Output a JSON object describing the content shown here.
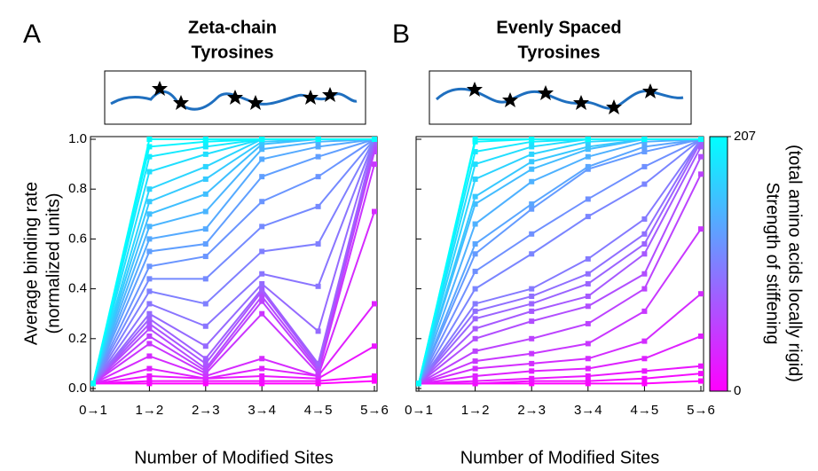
{
  "chart_data": [
    {
      "type": "line",
      "panel_label": "A",
      "title": [
        "Zeta-chain",
        "Tyrosines"
      ],
      "xlabel": "Number of Modified Sites",
      "ylabel": [
        "Average binding rate",
        "(normalized units)"
      ],
      "categories": [
        "0→1",
        "1→2",
        "2→3",
        "3→4",
        "4→5",
        "5→6"
      ],
      "ylim": [
        0,
        1
      ],
      "yticks": [
        {
          "value": 0,
          "label": "0.0"
        },
        0.2,
        0.4,
        0.6,
        0.8,
        {
          "value": 1,
          "label": "1.0"
        }
      ],
      "colormap": [
        "#ff00ff",
        "#00ffff"
      ],
      "series": [
        {
          "values": [
            0.02,
            0.02,
            0.02,
            0.02,
            0.02,
            0.03
          ]
        },
        {
          "values": [
            0.02,
            0.03,
            0.03,
            0.03,
            0.03,
            0.05
          ]
        },
        {
          "values": [
            0.02,
            0.05,
            0.04,
            0.05,
            0.04,
            0.17
          ]
        },
        {
          "values": [
            0.02,
            0.08,
            0.04,
            0.08,
            0.05,
            0.34
          ]
        },
        {
          "values": [
            0.02,
            0.13,
            0.05,
            0.12,
            0.05,
            0.71
          ]
        },
        {
          "values": [
            0.02,
            0.18,
            0.06,
            0.3,
            0.06,
            0.9
          ]
        },
        {
          "values": [
            0.02,
            0.21,
            0.07,
            0.35,
            0.07,
            0.95
          ]
        },
        {
          "values": [
            0.02,
            0.24,
            0.08,
            0.37,
            0.08,
            0.97
          ]
        },
        {
          "values": [
            0.02,
            0.26,
            0.1,
            0.39,
            0.09,
            0.98
          ]
        },
        {
          "values": [
            0.02,
            0.28,
            0.12,
            0.4,
            0.1,
            0.99
          ]
        },
        {
          "values": [
            0.02,
            0.3,
            0.17,
            0.42,
            0.23,
            1.0
          ]
        },
        {
          "values": [
            0.02,
            0.34,
            0.25,
            0.46,
            0.41,
            1.0
          ]
        },
        {
          "values": [
            0.02,
            0.39,
            0.34,
            0.55,
            0.58,
            1.0
          ]
        },
        {
          "values": [
            0.02,
            0.44,
            0.44,
            0.65,
            0.73,
            1.0
          ]
        },
        {
          "values": [
            0.02,
            0.49,
            0.53,
            0.75,
            0.85,
            1.0
          ]
        },
        {
          "values": [
            0.02,
            0.55,
            0.58,
            0.85,
            0.93,
            1.0
          ]
        },
        {
          "values": [
            0.02,
            0.6,
            0.64,
            0.92,
            0.97,
            1.0
          ]
        },
        {
          "values": [
            0.02,
            0.65,
            0.71,
            0.96,
            0.99,
            1.0
          ]
        },
        {
          "values": [
            0.02,
            0.7,
            0.78,
            0.98,
            1.0,
            1.0
          ]
        },
        {
          "values": [
            0.02,
            0.75,
            0.84,
            0.99,
            1.0,
            1.0
          ]
        },
        {
          "values": [
            0.02,
            0.8,
            0.89,
            1.0,
            1.0,
            1.0
          ]
        },
        {
          "values": [
            0.02,
            0.87,
            0.94,
            1.0,
            1.0,
            1.0
          ]
        },
        {
          "values": [
            0.02,
            0.93,
            0.97,
            1.0,
            1.0,
            1.0
          ]
        },
        {
          "values": [
            0.02,
            0.97,
            0.99,
            1.0,
            1.0,
            1.0
          ]
        },
        {
          "values": [
            0.02,
            1.0,
            1.0,
            1.0,
            1.0,
            1.0
          ]
        }
      ]
    },
    {
      "type": "line",
      "panel_label": "B",
      "title": [
        "Evenly Spaced",
        "Tyrosines"
      ],
      "xlabel": "Number of Modified Sites",
      "categories": [
        "0→1",
        "1→2",
        "2→3",
        "3→4",
        "4→5",
        "5→6"
      ],
      "ylim": [
        0,
        1
      ],
      "yticks": [
        0,
        0.2,
        0.4,
        0.6,
        0.8,
        1
      ],
      "colormap": [
        "#ff00ff",
        "#00ffff"
      ],
      "colorbar": {
        "label": [
          "Strength of stiffening",
          "(total amino acids locally rigid)"
        ],
        "lim": [
          0,
          207
        ],
        "ticks": [
          0,
          207
        ]
      },
      "series": [
        {
          "values": [
            0.02,
            0.02,
            0.02,
            0.02,
            0.02,
            0.03
          ]
        },
        {
          "values": [
            0.02,
            0.02,
            0.03,
            0.03,
            0.04,
            0.06
          ]
        },
        {
          "values": [
            0.02,
            0.03,
            0.04,
            0.05,
            0.07,
            0.09
          ]
        },
        {
          "values": [
            0.02,
            0.05,
            0.07,
            0.08,
            0.12,
            0.21
          ]
        },
        {
          "values": [
            0.02,
            0.08,
            0.1,
            0.12,
            0.19,
            0.38
          ]
        },
        {
          "values": [
            0.02,
            0.11,
            0.14,
            0.18,
            0.31,
            0.64
          ]
        },
        {
          "values": [
            0.02,
            0.15,
            0.2,
            0.26,
            0.4,
            0.86
          ]
        },
        {
          "values": [
            0.02,
            0.2,
            0.27,
            0.33,
            0.46,
            0.93
          ]
        },
        {
          "values": [
            0.02,
            0.24,
            0.31,
            0.37,
            0.54,
            0.97
          ]
        },
        {
          "values": [
            0.02,
            0.28,
            0.34,
            0.42,
            0.58,
            0.99
          ]
        },
        {
          "values": [
            0.02,
            0.31,
            0.37,
            0.46,
            0.62,
            1.0
          ]
        },
        {
          "values": [
            0.02,
            0.34,
            0.4,
            0.52,
            0.68,
            1.0
          ]
        },
        {
          "values": [
            0.02,
            0.4,
            0.54,
            0.69,
            0.82,
            1.0
          ]
        },
        {
          "values": [
            0.02,
            0.47,
            0.62,
            0.76,
            0.89,
            1.0
          ]
        },
        {
          "values": [
            0.02,
            0.54,
            0.72,
            0.88,
            0.95,
            1.0
          ]
        },
        {
          "values": [
            0.02,
            0.58,
            0.74,
            0.89,
            0.97,
            1.0
          ]
        },
        {
          "values": [
            0.02,
            0.66,
            0.83,
            0.93,
            0.99,
            1.0
          ]
        },
        {
          "values": [
            0.02,
            0.74,
            0.88,
            0.96,
            1.0,
            1.0
          ]
        },
        {
          "values": [
            0.02,
            0.77,
            0.91,
            0.97,
            1.0,
            1.0
          ]
        },
        {
          "values": [
            0.02,
            0.84,
            0.94,
            0.99,
            1.0,
            1.0
          ]
        },
        {
          "values": [
            0.02,
            0.9,
            0.97,
            1.0,
            1.0,
            1.0
          ]
        },
        {
          "values": [
            0.02,
            0.95,
            0.99,
            1.0,
            1.0,
            1.0
          ]
        },
        {
          "values": [
            0.02,
            0.99,
            1.0,
            1.0,
            1.0,
            1.0
          ]
        },
        {
          "values": [
            0.02,
            1.0,
            1.0,
            1.0,
            1.0,
            1.0
          ]
        }
      ]
    }
  ]
}
